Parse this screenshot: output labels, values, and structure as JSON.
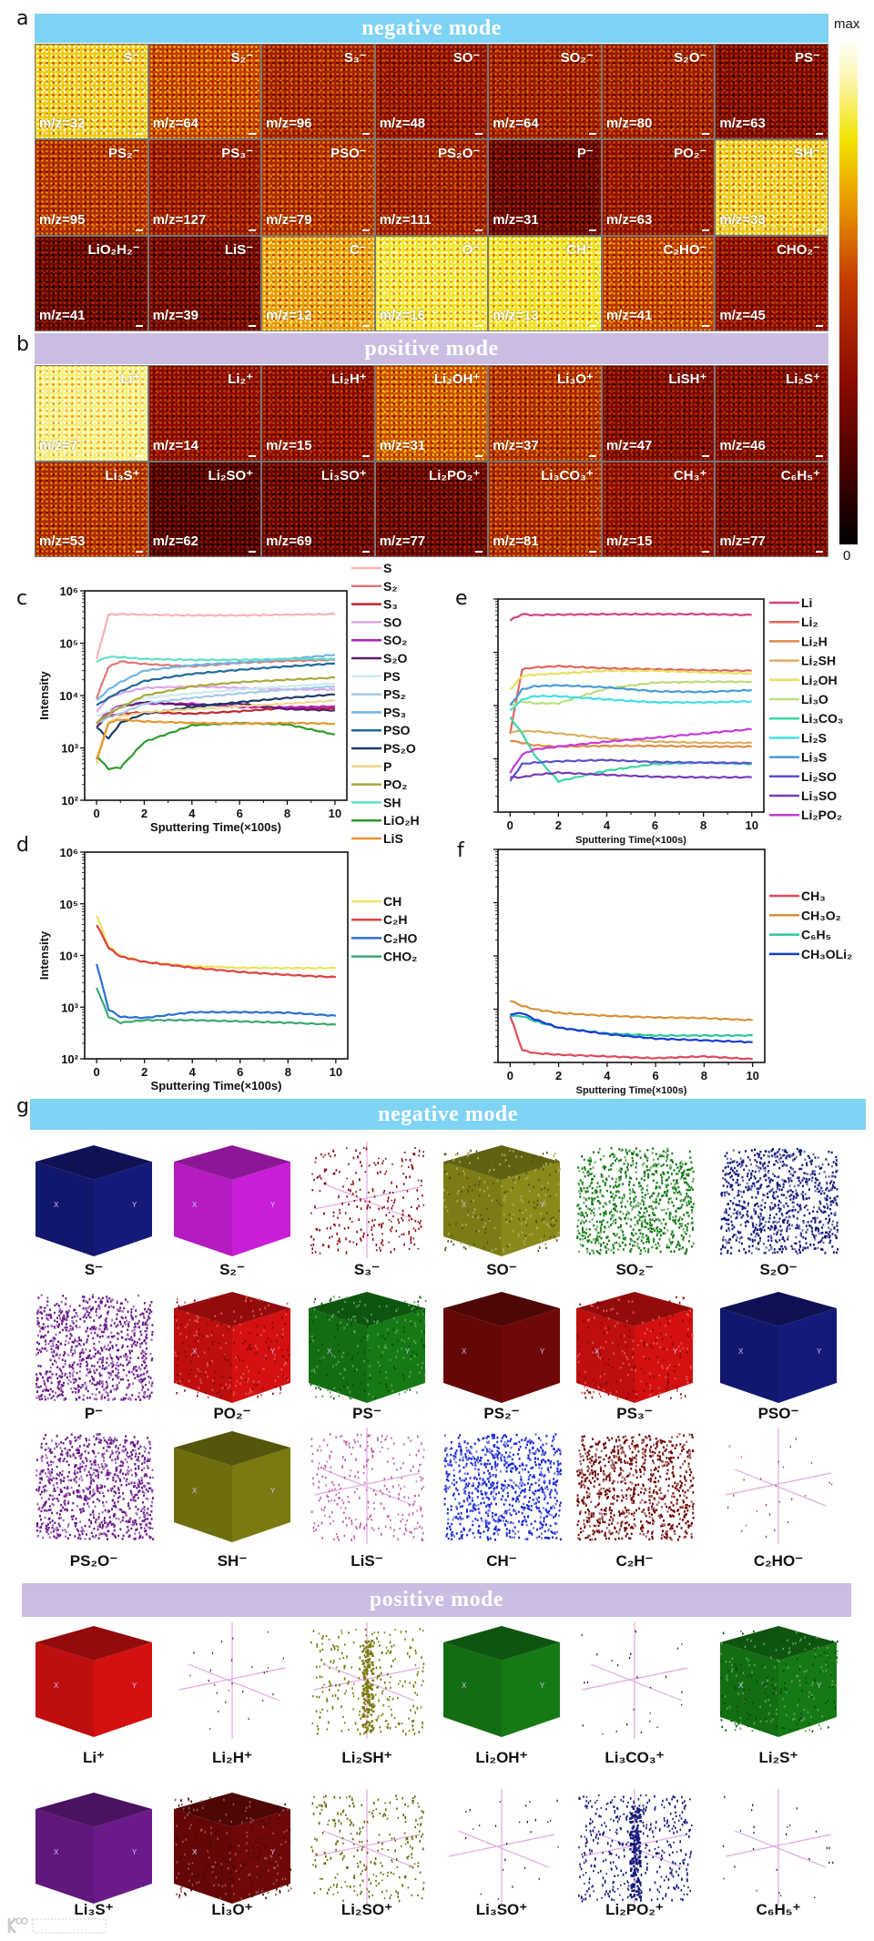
{
  "panel_labels": {
    "a": "a",
    "b": "b",
    "c": "c",
    "d": "d",
    "e": "e",
    "f": "f",
    "g": "g"
  },
  "a": {
    "banner": "negative mode",
    "tiles": [
      {
        "label": "S⁻",
        "mz": "m/z=32",
        "intensity": 0.76
      },
      {
        "label": "S₂⁻",
        "mz": "m/z=64",
        "intensity": 0.52
      },
      {
        "label": "S₃⁻",
        "mz": "m/z=96",
        "intensity": 0.4
      },
      {
        "label": "SO⁻",
        "mz": "m/z=48",
        "intensity": 0.34
      },
      {
        "label": "SO₂⁻",
        "mz": "m/z=64",
        "intensity": 0.38
      },
      {
        "label": "S₂O⁻",
        "mz": "m/z=80",
        "intensity": 0.38
      },
      {
        "label": "PS⁻",
        "mz": "m/z=63",
        "intensity": 0.28
      },
      {
        "label": "PS₂⁻",
        "mz": "m/z=95",
        "intensity": 0.45
      },
      {
        "label": "PS₃⁻",
        "mz": "m/z=127",
        "intensity": 0.36
      },
      {
        "label": "PSO⁻",
        "mz": "m/z=79",
        "intensity": 0.44
      },
      {
        "label": "PS₂O⁻",
        "mz": "m/z=111",
        "intensity": 0.38
      },
      {
        "label": "P⁻",
        "mz": "m/z=31",
        "intensity": 0.22
      },
      {
        "label": "PO₂⁻",
        "mz": "m/z=63",
        "intensity": 0.34
      },
      {
        "label": "SH⁻",
        "mz": "m/z=33",
        "intensity": 0.76
      },
      {
        "label": "LiO₂H₂⁻",
        "mz": "m/z=41",
        "intensity": 0.22
      },
      {
        "label": "LiS⁻",
        "mz": "m/z=39",
        "intensity": 0.24
      },
      {
        "label": "C⁻",
        "mz": "m/z=12",
        "intensity": 0.68
      },
      {
        "label": "O⁻",
        "mz": "m/z=16",
        "intensity": 0.82
      },
      {
        "label": "CH⁻",
        "mz": "m/z=13",
        "intensity": 0.8
      },
      {
        "label": "C₂HO⁻",
        "mz": "m/z=41",
        "intensity": 0.5
      },
      {
        "label": "CHO₂⁻",
        "mz": "m/z=45",
        "intensity": 0.32
      }
    ]
  },
  "b": {
    "banner": "positive mode",
    "tiles": [
      {
        "label": "Li⁺",
        "mz": "m/z=7",
        "intensity": 0.88
      },
      {
        "label": "Li₂⁺",
        "mz": "m/z=14",
        "intensity": 0.32
      },
      {
        "label": "Li₂H⁺",
        "mz": "m/z=15",
        "intensity": 0.32
      },
      {
        "label": "Li₂OH⁺",
        "mz": "m/z=31",
        "intensity": 0.55
      },
      {
        "label": "Li₃O⁺",
        "mz": "m/z=37",
        "intensity": 0.44
      },
      {
        "label": "LiSH⁺",
        "mz": "m/z=47",
        "intensity": 0.28
      },
      {
        "label": "Li₂S⁺",
        "mz": "m/z=46",
        "intensity": 0.28
      },
      {
        "label": "Li₃S⁺",
        "mz": "m/z=53",
        "intensity": 0.44
      },
      {
        "label": "Li₂SO⁺",
        "mz": "m/z=62",
        "intensity": 0.16
      },
      {
        "label": "Li₃SO⁺",
        "mz": "m/z=69",
        "intensity": 0.22
      },
      {
        "label": "Li₂PO₂⁺",
        "mz": "m/z=77",
        "intensity": 0.22
      },
      {
        "label": "Li₃CO₃⁺",
        "mz": "m/z=81",
        "intensity": 0.42
      },
      {
        "label": "CH₃⁺",
        "mz": "m/z=15",
        "intensity": 0.32
      },
      {
        "label": "C₆H₅⁺",
        "mz": "m/z=77",
        "intensity": 0.26
      }
    ]
  },
  "colorbar": {
    "max": "max",
    "min": "0"
  },
  "chart_data": [
    {
      "id": "c",
      "type": "line",
      "yscale": "log",
      "xlabel": "Sputtering Time(×100s)",
      "ylabel": "Intensity",
      "xlim": [
        -0.5,
        10.5
      ],
      "ylim": [
        100,
        1000000
      ],
      "xticks": [
        0,
        2,
        4,
        6,
        8,
        10
      ],
      "yticks": [
        100,
        1000,
        10000,
        100000,
        1000000
      ],
      "yticklabels": [
        "10²",
        "10³",
        "10⁴",
        "10⁵",
        "10⁶"
      ],
      "legend": "right",
      "x": [
        0,
        0.5,
        1,
        2,
        4,
        6,
        8,
        10
      ],
      "series": [
        {
          "name": "S",
          "color": "#f4b4b8",
          "values": [
            50000,
            350000,
            360000,
            350000,
            340000,
            340000,
            350000,
            360000
          ]
        },
        {
          "name": "S₂",
          "color": "#e07878",
          "values": [
            9000,
            35000,
            45000,
            40000,
            36000,
            42000,
            46000,
            48000
          ]
        },
        {
          "name": "S₃",
          "color": "#c0262b",
          "values": [
            3000,
            4000,
            4500,
            4800,
            4500,
            5000,
            5800,
            5600
          ]
        },
        {
          "name": "SO",
          "color": "#dba6ea",
          "values": [
            5000,
            9000,
            11000,
            14000,
            15000,
            14000,
            13000,
            13000
          ]
        },
        {
          "name": "SO₂",
          "color": "#b41fbc",
          "values": [
            3000,
            5000,
            6500,
            7000,
            7000,
            6000,
            6000,
            6200
          ]
        },
        {
          "name": "S₂O",
          "color": "#5a1a72",
          "values": [
            2500,
            4500,
            6000,
            7500,
            6500,
            7000,
            5500,
            5200
          ]
        },
        {
          "name": "PS",
          "color": "#cfe9f5",
          "values": [
            4000,
            5000,
            6000,
            9000,
            11000,
            13000,
            15000,
            17000
          ]
        },
        {
          "name": "PS₂",
          "color": "#a6c9e4",
          "values": [
            3000,
            3800,
            4500,
            7000,
            9000,
            11000,
            13000,
            15000
          ]
        },
        {
          "name": "PS₃",
          "color": "#70b4e6",
          "values": [
            8000,
            13000,
            18000,
            30000,
            38000,
            43000,
            50000,
            60000
          ]
        },
        {
          "name": "PSO",
          "color": "#1f6a9a",
          "values": [
            6500,
            9000,
            12000,
            19000,
            26000,
            31000,
            36000,
            41000
          ]
        },
        {
          "name": "PS₂O",
          "color": "#1c3b6a",
          "values": [
            2500,
            1500,
            3000,
            4500,
            6000,
            7500,
            9000,
            10500
          ]
        },
        {
          "name": "P",
          "color": "#f2d58c",
          "values": [
            500,
            3000,
            4000,
            4800,
            5500,
            6200,
            7000,
            8000
          ]
        },
        {
          "name": "PO₂",
          "color": "#a9a93a",
          "values": [
            3000,
            4500,
            6000,
            10000,
            15000,
            18000,
            20000,
            22000
          ]
        },
        {
          "name": "SH",
          "color": "#5fe0c8",
          "values": [
            45000,
            55000,
            54000,
            50000,
            48000,
            48000,
            50000,
            50000
          ]
        },
        {
          "name": "LiO₂H",
          "color": "#2e9a2e",
          "values": [
            700,
            400,
            420,
            1300,
            2700,
            3000,
            2800,
            1800
          ]
        },
        {
          "name": "LiS",
          "color": "#e8962f",
          "values": [
            600,
            3000,
            3500,
            3200,
            3000,
            2900,
            3000,
            2900
          ]
        }
      ]
    },
    {
      "id": "d",
      "type": "line",
      "yscale": "log",
      "xlabel": "Sputtering Time(×100s)",
      "ylabel": "Intensity",
      "xlim": [
        -0.5,
        10.5
      ],
      "ylim": [
        100,
        1000000
      ],
      "xticks": [
        0,
        2,
        4,
        6,
        8,
        10
      ],
      "yticks": [
        100,
        1000,
        10000,
        100000,
        1000000
      ],
      "yticklabels": [
        "10²",
        "10³",
        "10⁴",
        "10⁵",
        "10⁶"
      ],
      "legend": "right",
      "x": [
        0,
        0.5,
        1,
        2,
        4,
        6,
        8,
        10
      ],
      "series": [
        {
          "name": "CH",
          "color": "#eee35c",
          "values": [
            60000,
            15000,
            10000,
            7500,
            6200,
            5800,
            5700,
            5700
          ]
        },
        {
          "name": "C₂H",
          "color": "#e04040",
          "values": [
            40000,
            14000,
            9500,
            7500,
            5800,
            4800,
            4200,
            3800
          ]
        },
        {
          "name": "C₂HO",
          "color": "#2a6fd6",
          "values": [
            7000,
            900,
            650,
            620,
            800,
            800,
            780,
            680
          ]
        },
        {
          "name": "CHO₂",
          "color": "#3aa870",
          "values": [
            2400,
            650,
            500,
            560,
            560,
            530,
            500,
            460
          ]
        }
      ]
    },
    {
      "id": "e",
      "type": "line",
      "yscale": "log",
      "xlabel": "Sputtering Time(×100s)",
      "ylabel": "",
      "xlim": [
        -0.5,
        10.5
      ],
      "ylim": [
        100,
        1000000
      ],
      "xticks": [
        0,
        2,
        4,
        6,
        8,
        10
      ],
      "yticks": [
        100,
        1000,
        10000,
        100000,
        1000000
      ],
      "yticklabels": [],
      "legend": "right",
      "x": [
        0,
        0.5,
        1,
        2,
        4,
        6,
        8,
        10
      ],
      "series": [
        {
          "name": "Li",
          "color": "#d6407f",
          "values": [
            400000,
            520000,
            500000,
            510000,
            520000,
            520000,
            520000,
            500000
          ]
        },
        {
          "name": "Li₂",
          "color": "#e0655a",
          "values": [
            3000,
            48000,
            52000,
            55000,
            50000,
            48000,
            46000,
            45000
          ]
        },
        {
          "name": "Li₂H",
          "color": "#e08a4a",
          "values": [
            2200,
            2000,
            1800,
            1700,
            1750,
            1750,
            1700,
            1700
          ]
        },
        {
          "name": "Li₂SH",
          "color": "#d9b060",
          "values": [
            3200,
            3300,
            3300,
            3000,
            2400,
            2100,
            2000,
            2000
          ]
        },
        {
          "name": "Li₂OH",
          "color": "#e8e060",
          "values": [
            20000,
            36000,
            38000,
            40000,
            45000,
            45000,
            42000,
            40000
          ]
        },
        {
          "name": "Li₃O",
          "color": "#b8e07a",
          "values": [
            10000,
            12000,
            11000,
            11000,
            21000,
            27000,
            28000,
            28000
          ]
        },
        {
          "name": "Li₃CO₃",
          "color": "#3ad6a8",
          "values": [
            6000,
            3000,
            1200,
            380,
            600,
            800,
            850,
            800
          ]
        },
        {
          "name": "Li₂S",
          "color": "#40e0e8",
          "values": [
            8000,
            13000,
            15000,
            15000,
            13000,
            11500,
            11500,
            12000
          ]
        },
        {
          "name": "Li₃S",
          "color": "#4a9ad6",
          "values": [
            10000,
            20000,
            23000,
            24000,
            22000,
            18500,
            18000,
            19500
          ]
        },
        {
          "name": "Li₂SO",
          "color": "#5a50d0",
          "values": [
            380,
            800,
            850,
            900,
            950,
            870,
            850,
            830
          ]
        },
        {
          "name": "Li₃SO",
          "color": "#7a3ab8",
          "values": [
            450,
            450,
            500,
            550,
            500,
            460,
            450,
            450
          ]
        },
        {
          "name": "Li₂PO₂",
          "color": "#c83ad6",
          "values": [
            550,
            1200,
            1500,
            1700,
            2100,
            2500,
            3000,
            3600
          ]
        }
      ]
    },
    {
      "id": "f",
      "type": "line",
      "yscale": "log",
      "xlabel": "Sputtering Time(×100s)",
      "ylabel": "",
      "xlim": [
        -0.5,
        10.5
      ],
      "ylim": [
        100,
        1000000
      ],
      "xticks": [
        0,
        2,
        4,
        6,
        8,
        10
      ],
      "yticks": [
        100,
        1000,
        10000,
        100000,
        1000000
      ],
      "yticklabels": [],
      "legend": "right",
      "x": [
        0,
        0.5,
        1,
        2,
        4,
        6,
        8,
        10
      ],
      "series": [
        {
          "name": "CH₃",
          "color": "#e04a5a",
          "values": [
            750,
            170,
            150,
            140,
            130,
            120,
            130,
            115
          ]
        },
        {
          "name": "CH₃O₂",
          "color": "#d9903a",
          "values": [
            1450,
            1150,
            1000,
            850,
            750,
            700,
            680,
            620
          ]
        },
        {
          "name": "C₆H₅",
          "color": "#2ac8a0",
          "values": [
            750,
            740,
            600,
            450,
            350,
            320,
            320,
            320
          ]
        },
        {
          "name": "CH₃OLi₂",
          "color": "#1a3ad6",
          "values": [
            800,
            850,
            650,
            450,
            340,
            280,
            260,
            240
          ]
        }
      ]
    }
  ],
  "g": {
    "negative_banner": "negative mode",
    "positive_banner": "positive mode",
    "axis_labels": [
      "X",
      "Y"
    ],
    "items": [
      {
        "label": "S⁻",
        "color": "#141a7a",
        "style": "solid"
      },
      {
        "label": "S₂⁻",
        "color": "#c81fd6",
        "style": "solid"
      },
      {
        "label": "S₃⁻",
        "color": "#8a0a14",
        "style": "sparse"
      },
      {
        "label": "SO⁻",
        "color": "#8a8a1a",
        "style": "textured"
      },
      {
        "label": "SO₂⁻",
        "color": "#157a15",
        "style": "porous"
      },
      {
        "label": "S₂O⁻",
        "color": "#141a7a",
        "style": "porous"
      },
      {
        "label": "P⁻",
        "color": "#6a1a8a",
        "style": "porous"
      },
      {
        "label": "PO₂⁻",
        "color": "#d41010",
        "style": "textured"
      },
      {
        "label": "PS⁻",
        "color": "#157a15",
        "style": "textured"
      },
      {
        "label": "PS₂⁻",
        "color": "#700808",
        "style": "solid"
      },
      {
        "label": "PS₃⁻",
        "color": "#d41010",
        "style": "textured"
      },
      {
        "label": "PSO⁻",
        "color": "#141a7a",
        "style": "solid"
      },
      {
        "label": "PS₂O⁻",
        "color": "#6a1a8a",
        "style": "porous"
      },
      {
        "label": "SH⁻",
        "color": "#7a7a10",
        "style": "solid"
      },
      {
        "label": "LiS⁻",
        "color": "#c060a8",
        "style": "sparse"
      },
      {
        "label": "CH⁻",
        "color": "#1a2ad6",
        "style": "porous"
      },
      {
        "label": "C₂H⁻",
        "color": "#700808",
        "style": "porous"
      },
      {
        "label": "C₂HO⁻",
        "color": "#a04060",
        "style": "axes"
      },
      {
        "label": "Li⁺",
        "color": "#d41010",
        "style": "solid"
      },
      {
        "label": "Li₂H⁺",
        "color": "#604060",
        "style": "axes"
      },
      {
        "label": "Li₂SH⁺",
        "color": "#7a7a10",
        "style": "sparse"
      },
      {
        "label": "Li₂OH⁺",
        "color": "#157a15",
        "style": "solid"
      },
      {
        "label": "Li₃CO₃⁺",
        "color": "#302040",
        "style": "axes"
      },
      {
        "label": "Li₂S⁺",
        "color": "#157a15",
        "style": "textured"
      },
      {
        "label": "Li₃S⁺",
        "color": "#6a1a8a",
        "style": "solid"
      },
      {
        "label": "Li₃O⁺",
        "color": "#700808",
        "style": "textured"
      },
      {
        "label": "Li₂SO⁺",
        "color": "#6a6a10",
        "style": "sparse"
      },
      {
        "label": "Li₃SO⁺",
        "color": "#202040",
        "style": "axes"
      },
      {
        "label": "Li₂PO₂⁺",
        "color": "#141a7a",
        "style": "sparse"
      },
      {
        "label": "C₆H₅⁺",
        "color": "#202040",
        "style": "axes"
      }
    ]
  },
  "watermark": "大数跨境"
}
